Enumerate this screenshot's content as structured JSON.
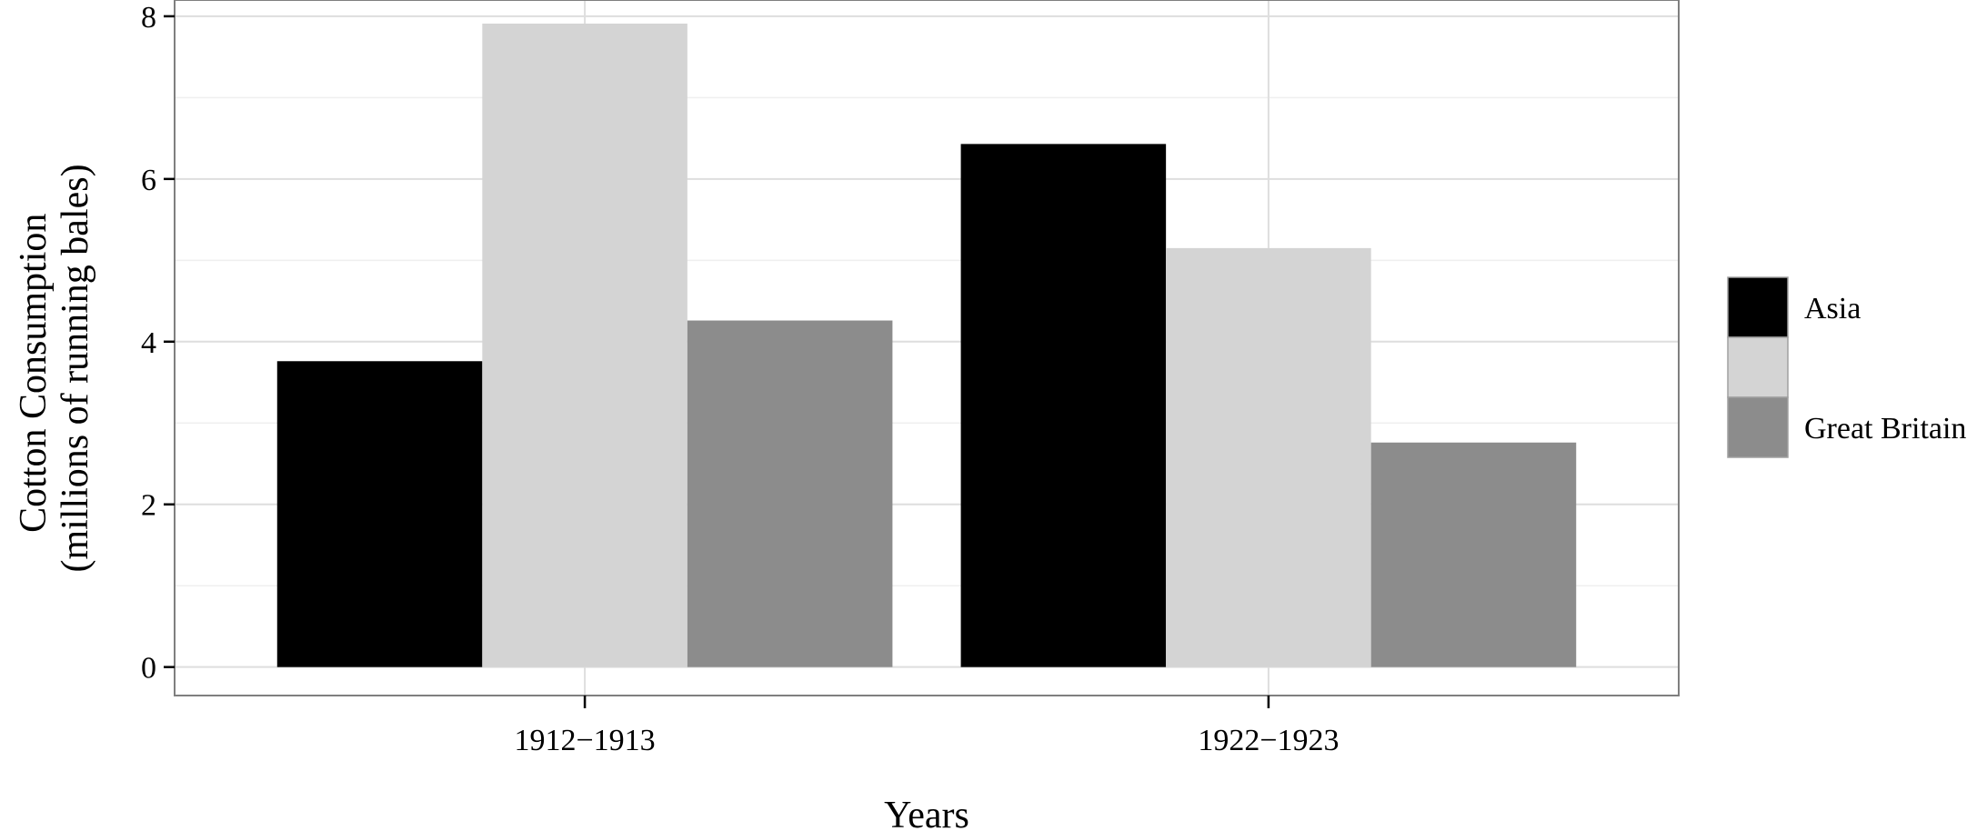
{
  "chart_data": {
    "type": "bar",
    "title": "",
    "xlabel": "Years",
    "ylabel": [
      "Cotton Consumption",
      "(millions of running bales)"
    ],
    "categories": [
      "1912−1913",
      "1922−1923"
    ],
    "series": [
      {
        "name": "Asia",
        "values": [
          3.76,
          6.43
        ],
        "color": "#000000"
      },
      {
        "values": [
          7.91,
          5.15
        ],
        "color": "#d4d4d4"
      },
      {
        "name": "Great Britain",
        "values": [
          4.26,
          2.76
        ],
        "color": "#8c8c8c"
      }
    ],
    "ylim": [
      -0.35,
      8.2
    ],
    "yticks": [
      0,
      2,
      4,
      6,
      8
    ],
    "grid": true,
    "legend_position": "right",
    "colors": {
      "grid_major": "#dedede",
      "grid_minor": "#efefef",
      "panel_border": "#7f7f7f",
      "legend_key_border": "#a0a0a0"
    }
  }
}
